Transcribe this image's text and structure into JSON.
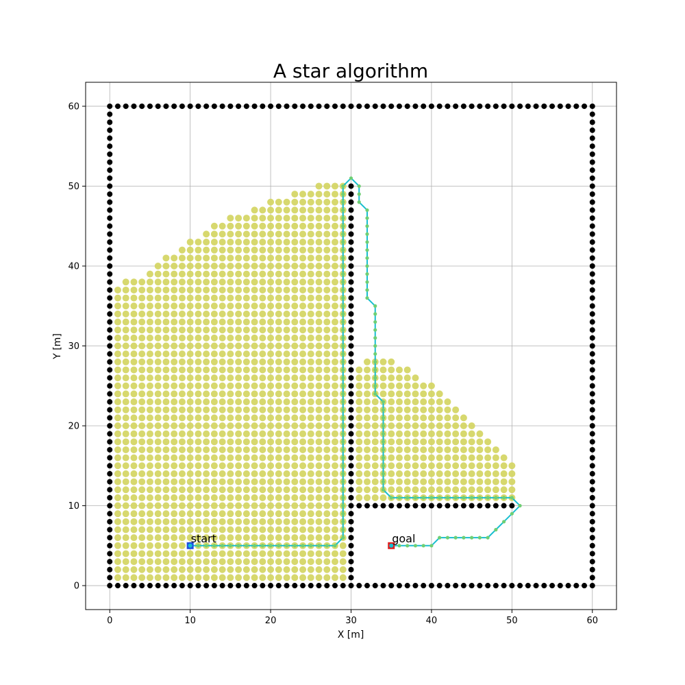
{
  "chart_data": {
    "type": "scatter",
    "title": "A star algorithm",
    "xlabel": "X [m]",
    "ylabel": "Y [m]",
    "xlim": [
      -3,
      63
    ],
    "ylim": [
      -3,
      63
    ],
    "xticks": [
      0,
      10,
      20,
      30,
      40,
      50,
      60
    ],
    "yticks": [
      0,
      10,
      20,
      30,
      40,
      50,
      60
    ],
    "grid": true,
    "aspect": "equal",
    "colors": {
      "obstacle": "#000000",
      "explored": "#d5d666",
      "path": "#17becf",
      "path_marker": "#6fcf74",
      "start": "#1f4fe0",
      "goal": "#e01f1f"
    },
    "obstacles": {
      "boundary": {
        "x_min": 0,
        "x_max": 60,
        "y_min": 0,
        "y_max": 60
      },
      "walls": [
        {
          "x": 30,
          "y_from": 0,
          "y_to": 50
        },
        {
          "y": 10,
          "x_from": 30,
          "x_to": 50
        }
      ]
    },
    "explored": {
      "left_region": {
        "x_from": 1,
        "x_to": 29,
        "y_from": 1,
        "y_max": [
          37,
          38,
          38,
          38,
          39,
          40,
          41,
          41,
          42,
          43,
          43,
          44,
          45,
          45,
          46,
          46,
          46,
          47,
          47,
          48,
          48,
          48,
          49,
          49,
          49,
          50,
          50,
          50,
          50
        ]
      },
      "right_region": {
        "x_from": 31,
        "x_to": 50,
        "y_from": 11,
        "y_max": [
          27,
          28,
          28,
          28,
          28,
          27,
          27,
          26,
          25,
          25,
          24,
          23,
          22,
          21,
          20,
          19,
          18,
          17,
          16,
          15
        ]
      }
    },
    "path": [
      [
        10,
        5
      ],
      [
        11,
        5
      ],
      [
        12,
        5
      ],
      [
        13,
        5
      ],
      [
        14,
        5
      ],
      [
        15,
        5
      ],
      [
        16,
        5
      ],
      [
        17,
        5
      ],
      [
        18,
        5
      ],
      [
        19,
        5
      ],
      [
        20,
        5
      ],
      [
        21,
        5
      ],
      [
        22,
        5
      ],
      [
        23,
        5
      ],
      [
        24,
        5
      ],
      [
        25,
        5
      ],
      [
        26,
        5
      ],
      [
        27,
        5
      ],
      [
        28,
        5
      ],
      [
        29,
        6
      ],
      [
        29,
        7
      ],
      [
        29,
        8
      ],
      [
        29,
        9
      ],
      [
        29,
        10
      ],
      [
        29,
        11
      ],
      [
        29,
        12
      ],
      [
        29,
        13
      ],
      [
        29,
        14
      ],
      [
        29,
        15
      ],
      [
        29,
        16
      ],
      [
        29,
        17
      ],
      [
        29,
        18
      ],
      [
        29,
        19
      ],
      [
        29,
        20
      ],
      [
        29,
        21
      ],
      [
        29,
        22
      ],
      [
        29,
        23
      ],
      [
        29,
        24
      ],
      [
        29,
        25
      ],
      [
        29,
        26
      ],
      [
        29,
        27
      ],
      [
        29,
        28
      ],
      [
        29,
        29
      ],
      [
        29,
        30
      ],
      [
        29,
        31
      ],
      [
        29,
        32
      ],
      [
        29,
        33
      ],
      [
        29,
        34
      ],
      [
        29,
        35
      ],
      [
        29,
        36
      ],
      [
        29,
        37
      ],
      [
        29,
        38
      ],
      [
        29,
        39
      ],
      [
        29,
        40
      ],
      [
        29,
        41
      ],
      [
        29,
        42
      ],
      [
        29,
        43
      ],
      [
        29,
        44
      ],
      [
        29,
        45
      ],
      [
        29,
        46
      ],
      [
        29,
        47
      ],
      [
        29,
        48
      ],
      [
        29,
        49
      ],
      [
        29,
        50
      ],
      [
        30,
        51
      ],
      [
        31,
        50
      ],
      [
        31,
        49
      ],
      [
        31,
        48
      ],
      [
        32,
        47
      ],
      [
        32,
        46
      ],
      [
        32,
        45
      ],
      [
        32,
        44
      ],
      [
        32,
        43
      ],
      [
        32,
        42
      ],
      [
        32,
        41
      ],
      [
        32,
        40
      ],
      [
        32,
        39
      ],
      [
        32,
        38
      ],
      [
        32,
        37
      ],
      [
        32,
        36
      ],
      [
        33,
        35
      ],
      [
        33,
        34
      ],
      [
        33,
        33
      ],
      [
        33,
        32
      ],
      [
        33,
        31
      ],
      [
        33,
        30
      ],
      [
        33,
        29
      ],
      [
        33,
        28
      ],
      [
        33,
        27
      ],
      [
        33,
        26
      ],
      [
        33,
        25
      ],
      [
        33,
        24
      ],
      [
        34,
        23
      ],
      [
        34,
        22
      ],
      [
        34,
        21
      ],
      [
        34,
        20
      ],
      [
        34,
        19
      ],
      [
        34,
        18
      ],
      [
        34,
        17
      ],
      [
        34,
        16
      ],
      [
        34,
        15
      ],
      [
        34,
        14
      ],
      [
        34,
        13
      ],
      [
        34,
        12
      ],
      [
        35,
        11
      ],
      [
        36,
        11
      ],
      [
        37,
        11
      ],
      [
        38,
        11
      ],
      [
        39,
        11
      ],
      [
        40,
        11
      ],
      [
        41,
        11
      ],
      [
        42,
        11
      ],
      [
        43,
        11
      ],
      [
        44,
        11
      ],
      [
        45,
        11
      ],
      [
        46,
        11
      ],
      [
        47,
        11
      ],
      [
        48,
        11
      ],
      [
        49,
        11
      ],
      [
        50,
        11
      ],
      [
        51,
        10
      ],
      [
        50,
        9
      ],
      [
        49,
        8
      ],
      [
        48,
        7
      ],
      [
        47,
        6
      ],
      [
        46,
        6
      ],
      [
        45,
        6
      ],
      [
        44,
        6
      ],
      [
        43,
        6
      ],
      [
        42,
        6
      ],
      [
        41,
        6
      ],
      [
        40,
        5
      ],
      [
        39,
        5
      ],
      [
        38,
        5
      ],
      [
        37,
        5
      ],
      [
        36,
        5
      ],
      [
        35,
        5
      ]
    ],
    "start": {
      "x": 10,
      "y": 5,
      "label": "start"
    },
    "goal": {
      "x": 35,
      "y": 5,
      "label": "goal"
    }
  }
}
